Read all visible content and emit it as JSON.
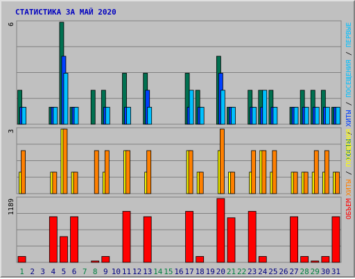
{
  "chart_data": [
    {
      "type": "bar",
      "title": "СТАТИСТИКА ЗА МАЙ 2020",
      "legend_right": [
        "ХОСТЫ",
        "ХИТЫ",
        "ПОСЕЩЕНИЯ",
        "ПЕРВЫЕ"
      ],
      "legend_colors": [
        "#007050",
        "#0040ff",
        "#00c0ff",
        "#00c0ff"
      ],
      "x": [
        1,
        2,
        3,
        4,
        5,
        6,
        7,
        8,
        9,
        10,
        11,
        12,
        13,
        14,
        15,
        16,
        17,
        18,
        19,
        20,
        21,
        22,
        23,
        24,
        25,
        26,
        27,
        28,
        29,
        30,
        31
      ],
      "ylim": [
        0,
        6
      ],
      "y_tick_labels": [
        "6"
      ],
      "series": [
        {
          "color": "#007050",
          "values": [
            2,
            0,
            0,
            1,
            6,
            1,
            0,
            2,
            2,
            0,
            3,
            0,
            3,
            0,
            0,
            0,
            3,
            2,
            0,
            4,
            1,
            0,
            2,
            2,
            2,
            0,
            1,
            2,
            2,
            2,
            1
          ]
        },
        {
          "color": "#0040ff",
          "values": [
            1,
            0,
            0,
            1,
            4,
            1,
            0,
            0,
            1,
            0,
            1,
            0,
            2,
            0,
            0,
            0,
            1,
            1,
            0,
            3,
            1,
            0,
            1,
            1,
            1,
            0,
            1,
            1,
            1,
            1,
            1
          ]
        },
        {
          "color": "#00c0ff",
          "values": [
            1,
            0,
            0,
            1,
            3,
            1,
            0,
            0,
            1,
            0,
            1,
            0,
            1,
            0,
            0,
            0,
            2,
            1,
            0,
            2,
            1,
            0,
            1,
            2,
            1,
            0,
            1,
            1,
            1,
            1,
            1
          ]
        }
      ]
    },
    {
      "type": "bar",
      "legend_right": [
        "ХИТЫ",
        "ПОСЕЩЕНИЯ"
      ],
      "legend_colors": [
        "#ff8000",
        "#ffff00"
      ],
      "x": [
        1,
        2,
        3,
        4,
        5,
        6,
        7,
        8,
        9,
        10,
        11,
        12,
        13,
        14,
        15,
        16,
        17,
        18,
        19,
        20,
        21,
        22,
        23,
        24,
        25,
        26,
        27,
        28,
        29,
        30,
        31
      ],
      "ylim": [
        0,
        3
      ],
      "y_tick_labels": [
        "3"
      ],
      "series": [
        {
          "color": "#ffff00",
          "values": [
            1,
            0,
            0,
            1,
            3,
            1,
            0,
            0,
            1,
            0,
            2,
            0,
            1,
            0,
            0,
            0,
            2,
            1,
            0,
            2,
            1,
            0,
            1,
            2,
            1,
            0,
            1,
            1,
            1,
            1,
            1
          ]
        },
        {
          "color": "#ff8000",
          "values": [
            2,
            0,
            0,
            1,
            3,
            1,
            0,
            2,
            2,
            0,
            2,
            0,
            2,
            0,
            0,
            0,
            2,
            1,
            0,
            3,
            1,
            0,
            2,
            2,
            2,
            0,
            1,
            1,
            2,
            2,
            1
          ]
        }
      ]
    },
    {
      "type": "bar",
      "legend_right": [
        "ОБЪЕМ"
      ],
      "legend_colors": [
        "#ff0000"
      ],
      "x": [
        1,
        2,
        3,
        4,
        5,
        6,
        7,
        8,
        9,
        10,
        11,
        12,
        13,
        14,
        15,
        16,
        17,
        18,
        19,
        20,
        21,
        22,
        23,
        24,
        25,
        26,
        27,
        28,
        29,
        30,
        31
      ],
      "ylim": [
        0,
        1189
      ],
      "y_tick_labels": [
        "1189"
      ],
      "series": [
        {
          "color": "#ff0000",
          "values": [
            110,
            0,
            0,
            850,
            480,
            850,
            0,
            10,
            110,
            0,
            950,
            0,
            850,
            0,
            0,
            0,
            950,
            110,
            0,
            1189,
            830,
            0,
            950,
            110,
            0,
            0,
            850,
            110,
            10,
            110,
            850
          ]
        }
      ]
    }
  ],
  "x_tick_labels": [
    "1",
    "2",
    "3",
    "4",
    "5",
    "6",
    "7",
    "8",
    "9",
    "10",
    "11",
    "12",
    "13",
    "14",
    "15",
    "16",
    "17",
    "18",
    "19",
    "20",
    "21",
    "22",
    "23",
    "24",
    "25",
    "26",
    "27",
    "28",
    "29",
    "30",
    "31"
  ],
  "weekend_days": [
    1,
    7,
    8,
    14,
    15,
    21,
    22,
    28,
    29
  ],
  "colors": {
    "background": "#c0c0c0",
    "title": "#0000c0",
    "weekday_label": "#000080",
    "weekend_label": "#008040",
    "grid": "#808080"
  }
}
